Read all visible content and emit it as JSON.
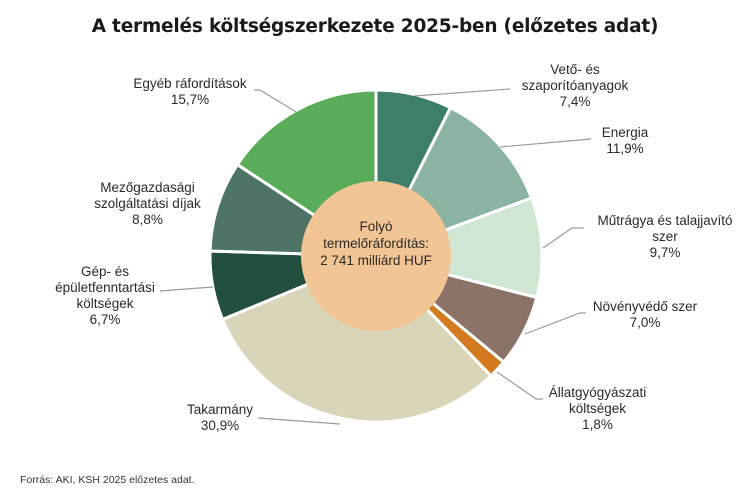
{
  "title": "A termelés költségszerkezete 2025-ben (előzetes adat)",
  "center_label": {
    "line1": "Folyó",
    "line2": "termelőráfordítás:",
    "line3": "2 741 milliárd HUF"
  },
  "source": "Forrás: AKI, KSH   2025 előzetes adat.",
  "labels": {
    "veto": {
      "line1": "Vető- és",
      "line2": "szaporítóanyagok",
      "value": "7,4%"
    },
    "energia": {
      "line1": "Energia",
      "value": "11,9%"
    },
    "mutragya": {
      "line1": "Műtrágya és talajjavító",
      "line2": "szer",
      "value": "9,7%"
    },
    "novenyvedo": {
      "line1": "Növényvédő szer",
      "value": "7,0%"
    },
    "allatgyogy": {
      "line1": "Állatgyógyászati",
      "line2": "költségek",
      "value": "1,8%"
    },
    "takarmany": {
      "line1": "Takarmány",
      "value": "30,9%"
    },
    "gep": {
      "line1": "Gép- és",
      "line2": "épületfenntartási",
      "line3": "költségek",
      "value": "6,7%"
    },
    "mezogazd": {
      "line1": "Mezőgazdasági",
      "line2": "szolgáltatási díjak",
      "value": "8,8%"
    },
    "egyeb": {
      "line1": "Egyéb ráfordítások",
      "value": "15,7%"
    }
  },
  "chart_data": {
    "type": "pie",
    "subtype": "donut",
    "title": "A termelés költségszerkezete 2025-ben (előzetes adat)",
    "center_annotation": "Folyó termelőráfordítás: 2 741 milliárd HUF",
    "unit": "%",
    "start_angle": "12 o'clock, clockwise",
    "categories": [
      "Vető- és szaporítóanyagok",
      "Energia",
      "Műtrágya és talajjavító szer",
      "Növényvédő szer",
      "Állatgyógyászati költségek",
      "Takarmány",
      "Gép- és épületfenntartási költségek",
      "Mezőgazdasági szolgáltatási díjak",
      "Egyéb ráfordítások"
    ],
    "values": [
      7.4,
      11.9,
      9.7,
      7.0,
      1.8,
      30.9,
      6.7,
      8.8,
      15.7
    ],
    "colors": [
      "#3d7f68",
      "#8bb3a2",
      "#cfe6d2",
      "#8b7367",
      "#d27a1e",
      "#d8d5b9",
      "#234f3e",
      "#4d7465",
      "#5aad58"
    ],
    "center_color": "#f2c595",
    "source": "Forrás: AKI, KSH   2025 előzetes adat.",
    "legend": "none (direct labels with leader lines)"
  }
}
